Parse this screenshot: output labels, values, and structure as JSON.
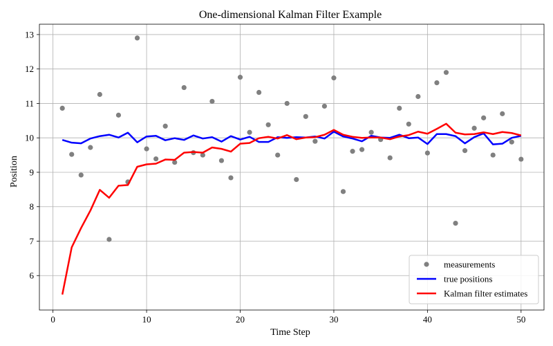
{
  "chart_data": {
    "type": "line",
    "title": "One-dimensional Kalman Filter Example",
    "xlabel": "Time Step",
    "ylabel": "Position",
    "xlim": [
      -1.45,
      52.45
    ],
    "ylim": [
      5.0,
      13.3
    ],
    "xticks": [
      0,
      10,
      20,
      30,
      40,
      50
    ],
    "yticks": [
      6,
      7,
      8,
      9,
      10,
      11,
      12,
      13
    ],
    "grid": true,
    "legend_position": "lower-right",
    "x": [
      1,
      2,
      3,
      4,
      5,
      6,
      7,
      8,
      9,
      10,
      11,
      12,
      13,
      14,
      15,
      16,
      17,
      18,
      19,
      20,
      21,
      22,
      23,
      24,
      25,
      26,
      27,
      28,
      29,
      30,
      31,
      32,
      33,
      34,
      35,
      36,
      37,
      38,
      39,
      40,
      41,
      42,
      43,
      44,
      45,
      46,
      47,
      48,
      49,
      50
    ],
    "series": [
      {
        "name": "measurements",
        "kind": "scatter",
        "color": "#808080",
        "values": [
          10.86,
          9.52,
          8.92,
          9.72,
          11.26,
          7.05,
          10.66,
          8.72,
          12.9,
          9.68,
          9.39,
          10.34,
          9.29,
          11.46,
          9.57,
          9.5,
          11.06,
          9.34,
          8.84,
          11.76,
          10.16,
          11.32,
          10.38,
          9.5,
          11.0,
          8.79,
          10.62,
          9.9,
          10.92,
          11.74,
          8.44,
          9.61,
          9.66,
          10.16,
          9.95,
          9.42,
          10.86,
          10.4,
          11.2,
          9.56,
          11.6,
          11.9,
          7.52,
          9.63,
          10.28,
          10.58,
          9.5,
          10.7,
          9.88,
          9.38
        ]
      },
      {
        "name": "true positions",
        "kind": "line",
        "color": "#0000ff",
        "values": [
          9.94,
          9.86,
          9.84,
          9.98,
          10.05,
          10.09,
          10.01,
          10.15,
          9.87,
          10.04,
          10.06,
          9.93,
          9.99,
          9.94,
          10.07,
          9.98,
          10.02,
          9.89,
          10.05,
          9.95,
          10.03,
          9.88,
          9.88,
          10.02,
          10.0,
          10.02,
          10.01,
          10.04,
          9.98,
          10.18,
          10.04,
          9.98,
          9.9,
          10.06,
          10.01,
          10.0,
          10.09,
          9.99,
          10.01,
          9.82,
          10.11,
          10.11,
          10.05,
          9.84,
          10.02,
          10.13,
          9.81,
          9.83,
          10.0,
          10.06
        ]
      },
      {
        "name": "Kalman filter estimates",
        "kind": "line",
        "color": "#ff0000",
        "values": [
          5.45,
          6.82,
          7.38,
          7.89,
          8.49,
          8.26,
          8.61,
          8.63,
          9.16,
          9.23,
          9.25,
          9.37,
          9.36,
          9.57,
          9.59,
          9.57,
          9.72,
          9.68,
          9.6,
          9.83,
          9.85,
          9.99,
          10.03,
          9.98,
          10.08,
          9.96,
          10.01,
          10.02,
          10.09,
          10.23,
          10.09,
          10.03,
          10.0,
          10.01,
          10.01,
          9.96,
          10.04,
          10.08,
          10.18,
          10.12,
          10.26,
          10.41,
          10.15,
          10.1,
          10.11,
          10.16,
          10.11,
          10.17,
          10.14,
          10.07
        ]
      }
    ]
  }
}
